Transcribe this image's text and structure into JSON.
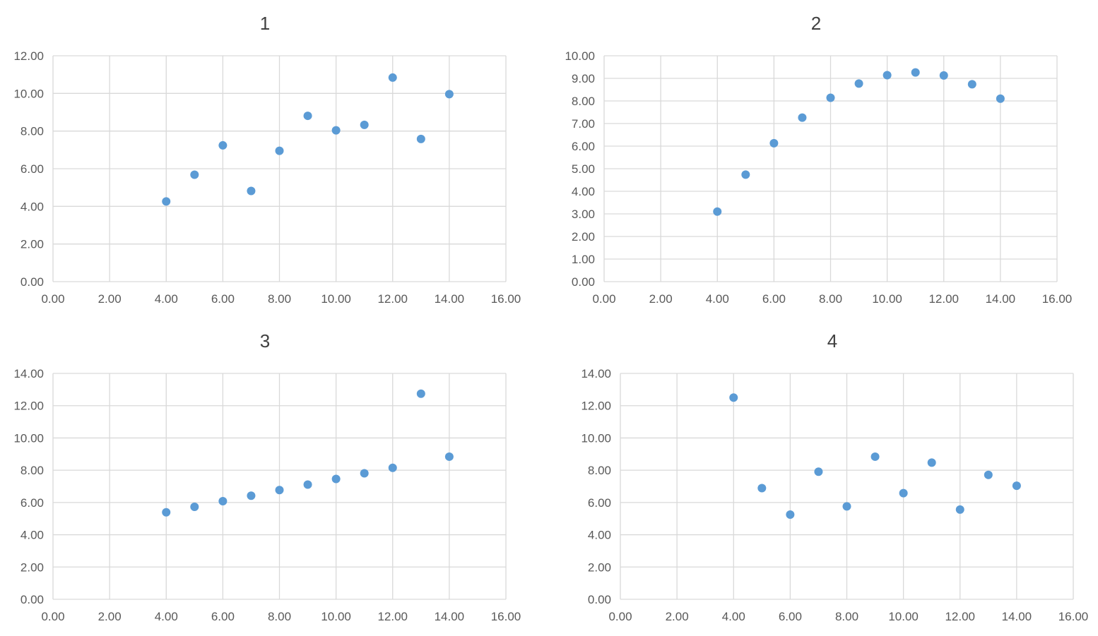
{
  "point_color": "#5B9BD5",
  "grid_color": "#D9D9D9",
  "text_color": "#595959",
  "title_color": "#404040",
  "chart_data": [
    {
      "type": "scatter",
      "title": "1",
      "xlim": [
        0,
        16
      ],
      "ylim": [
        0,
        12
      ],
      "x_ticks": [
        "0.00",
        "2.00",
        "4.00",
        "6.00",
        "8.00",
        "10.00",
        "12.00",
        "14.00",
        "16.00"
      ],
      "y_ticks": [
        "0.00",
        "2.00",
        "4.00",
        "6.00",
        "8.00",
        "10.00",
        "12.00"
      ],
      "grid": true,
      "legend": "none",
      "x": [
        4,
        5,
        6,
        7,
        8,
        9,
        10,
        11,
        12,
        13,
        14
      ],
      "y": [
        4.26,
        5.68,
        7.24,
        4.82,
        6.95,
        8.81,
        8.04,
        8.33,
        10.84,
        7.58,
        9.96
      ]
    },
    {
      "type": "scatter",
      "title": "2",
      "xlim": [
        0,
        16
      ],
      "ylim": [
        0,
        10
      ],
      "x_ticks": [
        "0.00",
        "2.00",
        "4.00",
        "6.00",
        "8.00",
        "10.00",
        "12.00",
        "14.00",
        "16.00"
      ],
      "y_ticks": [
        "0.00",
        "1.00",
        "2.00",
        "3.00",
        "4.00",
        "5.00",
        "6.00",
        "7.00",
        "8.00",
        "9.00",
        "10.00"
      ],
      "grid": true,
      "legend": "none",
      "x": [
        4,
        5,
        6,
        7,
        8,
        9,
        10,
        11,
        12,
        13,
        14
      ],
      "y": [
        3.1,
        4.74,
        6.13,
        7.26,
        8.14,
        8.77,
        9.14,
        9.26,
        9.13,
        8.74,
        8.1
      ]
    },
    {
      "type": "scatter",
      "title": "3",
      "xlim": [
        0,
        16
      ],
      "ylim": [
        0,
        14
      ],
      "x_ticks": [
        "0.00",
        "2.00",
        "4.00",
        "6.00",
        "8.00",
        "10.00",
        "12.00",
        "14.00",
        "16.00"
      ],
      "y_ticks": [
        "0.00",
        "2.00",
        "4.00",
        "6.00",
        "8.00",
        "10.00",
        "12.00",
        "14.00"
      ],
      "grid": true,
      "legend": "none",
      "x": [
        4,
        5,
        6,
        7,
        8,
        9,
        10,
        11,
        12,
        13,
        14
      ],
      "y": [
        5.39,
        5.73,
        6.08,
        6.42,
        6.77,
        7.11,
        7.46,
        7.81,
        8.15,
        12.74,
        8.84
      ]
    },
    {
      "type": "scatter",
      "title": "4",
      "xlim": [
        0,
        16
      ],
      "ylim": [
        0,
        14
      ],
      "x_ticks": [
        "0.00",
        "2.00",
        "4.00",
        "6.00",
        "8.00",
        "10.00",
        "12.00",
        "14.00",
        "16.00"
      ],
      "y_ticks": [
        "0.00",
        "2.00",
        "4.00",
        "6.00",
        "8.00",
        "10.00",
        "12.00",
        "14.00"
      ],
      "grid": true,
      "legend": "none",
      "x": [
        4,
        5,
        6,
        7,
        8,
        9,
        10,
        11,
        12,
        13,
        14
      ],
      "y": [
        12.5,
        6.89,
        5.25,
        7.91,
        5.76,
        8.84,
        6.58,
        8.47,
        5.56,
        7.71,
        7.04
      ]
    }
  ]
}
